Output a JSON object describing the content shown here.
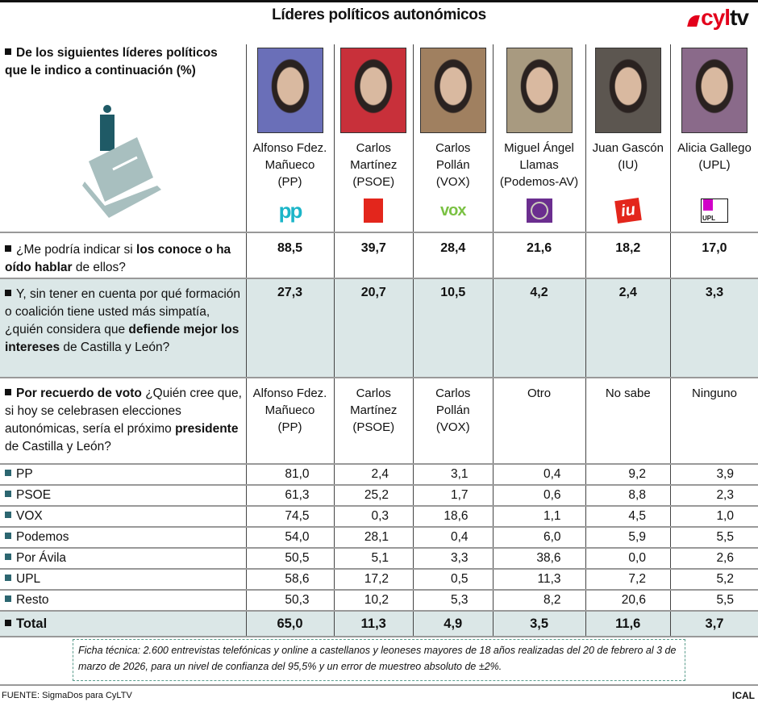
{
  "header": {
    "title": "Líderes políticos autonómicos",
    "logo_text": "cyltv"
  },
  "intro": "De los siguientes líderes políticos que le indico a continuación (%)",
  "leaders": [
    {
      "name_lines": [
        "Alfonso Fdez.",
        "Mañueco",
        "(PP)"
      ],
      "party_logo": "pp-logo",
      "photo_bg": "#6a6fb8",
      "color": "#1bb5c8"
    },
    {
      "name_lines": [
        "Carlos",
        "Martínez",
        "(PSOE)"
      ],
      "party_logo": "psoe-logo",
      "photo_bg": "#c8303a",
      "color": "#e3261c"
    },
    {
      "name_lines": [
        "Carlos",
        "Pollán",
        "(VOX)"
      ],
      "party_logo": "vox-logo",
      "photo_bg": "#a08060",
      "color": "#7ac143"
    },
    {
      "name_lines": [
        "Miguel Ángel",
        "Llamas",
        "(Podemos-AV)"
      ],
      "party_logo": "podemos-logo",
      "photo_bg": "#a89a80",
      "color": "#6b2e8f"
    },
    {
      "name_lines": [
        "Juan Gascón",
        "(IU)",
        ""
      ],
      "party_logo": "iu-logo",
      "photo_bg": "#5c5650",
      "color": "#e3261c"
    },
    {
      "name_lines": [
        "Alicia Gallego",
        "(UPL)",
        ""
      ],
      "party_logo": "upl-logo",
      "photo_bg": "#8a6a8a",
      "color": "#d100c8"
    }
  ],
  "logo_texts": {
    "pp": "pp",
    "vox": "vox",
    "iu": "iu",
    "upl": "UPL"
  },
  "q1": {
    "pre": "¿Me podría indicar si ",
    "bold": "los conoce o ha oído hablar",
    "post": " de ellos?",
    "values": [
      "88,5",
      "39,7",
      "28,4",
      "21,6",
      "18,2",
      "17,0"
    ]
  },
  "q2": {
    "pre": "Y, sin tener en cuenta por qué formación o coalición tiene usted más simpatía, ¿quién considera que ",
    "bold": "defiende mejor los intereses",
    "post": " de Castilla y León?",
    "values": [
      "27,3",
      "20,7",
      "10,5",
      "4,2",
      "2,4",
      "3,3"
    ]
  },
  "q3": {
    "bold1": "Por recuerdo de voto",
    "mid": " ¿Quién cree que, si hoy se celebrasen elecciones autonómicas, sería el próximo ",
    "bold2": "presidente",
    "post": " de Castilla y León?",
    "options": [
      [
        "Alfonso Fdez.",
        "Mañueco",
        "(PP)"
      ],
      [
        "Carlos",
        "Martínez",
        "(PSOE)"
      ],
      [
        "Carlos",
        "Pollán",
        "(VOX)"
      ],
      [
        "Otro",
        "",
        ""
      ],
      [
        "No sabe",
        "",
        ""
      ],
      [
        "Ninguno",
        "",
        ""
      ]
    ]
  },
  "rows": [
    {
      "label": "PP",
      "values": [
        "81,0",
        "2,4",
        "3,1",
        "0,4",
        "9,2",
        "3,9"
      ]
    },
    {
      "label": "PSOE",
      "values": [
        "61,3",
        "25,2",
        "1,7",
        "0,6",
        "8,8",
        "2,3"
      ]
    },
    {
      "label": "VOX",
      "values": [
        "74,5",
        "0,3",
        "18,6",
        "1,1",
        "4,5",
        "1,0"
      ]
    },
    {
      "label": "Podemos",
      "values": [
        "54,0",
        "28,1",
        "0,4",
        "6,0",
        "5,9",
        "5,5"
      ]
    },
    {
      "label": "Por Ávila",
      "values": [
        "50,5",
        "5,1",
        "3,3",
        "38,6",
        "0,0",
        "2,6"
      ]
    },
    {
      "label": "UPL",
      "values": [
        "58,6",
        "17,2",
        "0,5",
        "11,3",
        "7,2",
        "5,2"
      ]
    },
    {
      "label": "Resto",
      "values": [
        "50,3",
        "10,2",
        "5,3",
        "8,2",
        "20,6",
        "5,5"
      ]
    }
  ],
  "total": {
    "label": "Total",
    "values": [
      "65,0",
      "11,3",
      "4,9",
      "3,5",
      "11,6",
      "3,7"
    ]
  },
  "ficha": "Ficha técnica: 2.600 entrevistas telefónicas y online a castellanos y leoneses mayores de 18 años realizadas del 20 de febrero al 3 de marzo de 2026, para un nivel de confianza del 95,5% y un error de muestreo absoluto de ±2%.",
  "footer": {
    "source": "FUENTE: SigmaDos para CyLTV",
    "agency": "ICAL"
  },
  "colors": {
    "shade": "#dbe7e7",
    "bullet": "#2c6670",
    "brand": "#e3001b"
  }
}
